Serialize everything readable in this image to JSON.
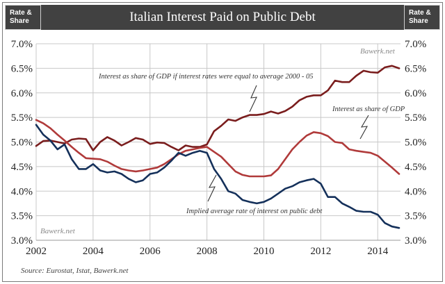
{
  "header": {
    "left_label_line1": "Rate &",
    "left_label_line2": "Share",
    "right_label_line1": "Rate &",
    "right_label_line2": "Share",
    "title": "Italian Interest Paid on Public Debt"
  },
  "source": "Source: Eurostat, Istat, Bawerk.net",
  "watermarks": {
    "top_right": "Bawerk.net",
    "bottom_left": "Bawerk.net"
  },
  "colors": {
    "burgundy": "#7a1d1d",
    "red": "#b03a3a",
    "navy": "#14305a",
    "header_bg": "#414141"
  },
  "chart_data": {
    "type": "line",
    "title": "Italian Interest Paid on Public Debt",
    "xlim": [
      2002,
      2014.8
    ],
    "ylim": [
      3.0,
      7.0
    ],
    "x_ticks": [
      2002,
      2004,
      2006,
      2008,
      2010,
      2012,
      2014
    ],
    "x_tick_labels": [
      "2002",
      "2004",
      "2006",
      "2008",
      "2010",
      "2012",
      "2014"
    ],
    "y_ticks": [
      3.0,
      3.5,
      4.0,
      4.5,
      5.0,
      5.5,
      6.0,
      6.5,
      7.0
    ],
    "y_tick_labels": [
      "3.0%",
      "3.5%",
      "4.0%",
      "4.5%",
      "5.0%",
      "5.5%",
      "6.0%",
      "6.5%",
      "7.0%"
    ],
    "grid": true,
    "annotations": [
      "Interest as share of GDP if interest rates were equal to average 2000 - 05",
      "Interest  as share of GDP",
      "Implied average rate of interest  on public debt"
    ],
    "series": [
      {
        "name": "Interest as share of GDP if interest rates were equal to average 2000 - 05",
        "color": "#7a1d1d",
        "x": [
          2002.0,
          2002.25,
          2002.5,
          2002.75,
          2003.0,
          2003.25,
          2003.5,
          2003.75,
          2004.0,
          2004.25,
          2004.5,
          2004.75,
          2005.0,
          2005.25,
          2005.5,
          2005.75,
          2006.0,
          2006.25,
          2006.5,
          2006.75,
          2007.0,
          2007.25,
          2007.5,
          2007.75,
          2008.0,
          2008.25,
          2008.5,
          2008.75,
          2009.0,
          2009.25,
          2009.5,
          2009.75,
          2010.0,
          2010.25,
          2010.5,
          2010.75,
          2011.0,
          2011.25,
          2011.5,
          2011.75,
          2012.0,
          2012.25,
          2012.5,
          2012.75,
          2013.0,
          2013.25,
          2013.5,
          2013.75,
          2014.0,
          2014.25,
          2014.5,
          2014.75
        ],
        "values": [
          4.92,
          5.02,
          5.03,
          5.0,
          4.97,
          5.05,
          5.07,
          5.06,
          4.83,
          5.0,
          5.1,
          5.03,
          4.93,
          5.0,
          5.08,
          5.05,
          4.96,
          4.99,
          4.98,
          4.9,
          4.83,
          4.93,
          4.9,
          4.9,
          4.95,
          5.22,
          5.33,
          5.46,
          5.43,
          5.5,
          5.55,
          5.55,
          5.57,
          5.62,
          5.58,
          5.63,
          5.72,
          5.85,
          5.92,
          5.95,
          5.95,
          6.05,
          6.25,
          6.22,
          6.22,
          6.35,
          6.45,
          6.42,
          6.41,
          6.52,
          6.55,
          6.5
        ]
      },
      {
        "name": "Interest  as share of GDP",
        "color": "#b03a3a",
        "x": [
          2002.0,
          2002.25,
          2002.5,
          2002.75,
          2003.0,
          2003.25,
          2003.5,
          2003.75,
          2004.0,
          2004.25,
          2004.5,
          2004.75,
          2005.0,
          2005.25,
          2005.5,
          2005.75,
          2006.0,
          2006.25,
          2006.5,
          2006.75,
          2007.0,
          2007.25,
          2007.5,
          2007.75,
          2008.0,
          2008.25,
          2008.5,
          2008.75,
          2009.0,
          2009.25,
          2009.5,
          2009.75,
          2010.0,
          2010.25,
          2010.5,
          2010.75,
          2011.0,
          2011.25,
          2011.5,
          2011.75,
          2012.0,
          2012.25,
          2012.5,
          2012.75,
          2013.0,
          2013.25,
          2013.5,
          2013.75,
          2014.0,
          2014.25,
          2014.5,
          2014.75
        ],
        "values": [
          5.45,
          5.38,
          5.28,
          5.15,
          5.03,
          4.9,
          4.78,
          4.67,
          4.66,
          4.65,
          4.6,
          4.52,
          4.45,
          4.42,
          4.4,
          4.42,
          4.45,
          4.48,
          4.55,
          4.65,
          4.75,
          4.82,
          4.85,
          4.88,
          4.9,
          4.8,
          4.7,
          4.55,
          4.4,
          4.33,
          4.3,
          4.3,
          4.3,
          4.32,
          4.45,
          4.65,
          4.85,
          5.0,
          5.13,
          5.2,
          5.18,
          5.12,
          5.0,
          4.98,
          4.85,
          4.82,
          4.8,
          4.78,
          4.72,
          4.6,
          4.48,
          4.35
        ]
      },
      {
        "name": "Implied average rate of interest  on public debt",
        "color": "#14305a",
        "x": [
          2002.0,
          2002.25,
          2002.5,
          2002.75,
          2003.0,
          2003.25,
          2003.5,
          2003.75,
          2004.0,
          2004.25,
          2004.5,
          2004.75,
          2005.0,
          2005.25,
          2005.5,
          2005.75,
          2006.0,
          2006.25,
          2006.5,
          2006.75,
          2007.0,
          2007.25,
          2007.5,
          2007.75,
          2008.0,
          2008.25,
          2008.5,
          2008.75,
          2009.0,
          2009.25,
          2009.5,
          2009.75,
          2010.0,
          2010.25,
          2010.5,
          2010.75,
          2011.0,
          2011.25,
          2011.5,
          2011.75,
          2012.0,
          2012.25,
          2012.5,
          2012.75,
          2013.0,
          2013.25,
          2013.5,
          2013.75,
          2014.0,
          2014.25,
          2014.5,
          2014.75
        ],
        "values": [
          5.35,
          5.15,
          5.03,
          4.85,
          4.95,
          4.65,
          4.45,
          4.45,
          4.55,
          4.42,
          4.38,
          4.4,
          4.35,
          4.25,
          4.18,
          4.22,
          4.35,
          4.38,
          4.48,
          4.62,
          4.78,
          4.72,
          4.78,
          4.82,
          4.78,
          4.45,
          4.25,
          4.0,
          3.95,
          3.82,
          3.78,
          3.75,
          3.78,
          3.85,
          3.95,
          4.05,
          4.1,
          4.18,
          4.22,
          4.25,
          4.15,
          3.88,
          3.88,
          3.75,
          3.68,
          3.6,
          3.58,
          3.58,
          3.52,
          3.35,
          3.28,
          3.25
        ]
      }
    ]
  }
}
